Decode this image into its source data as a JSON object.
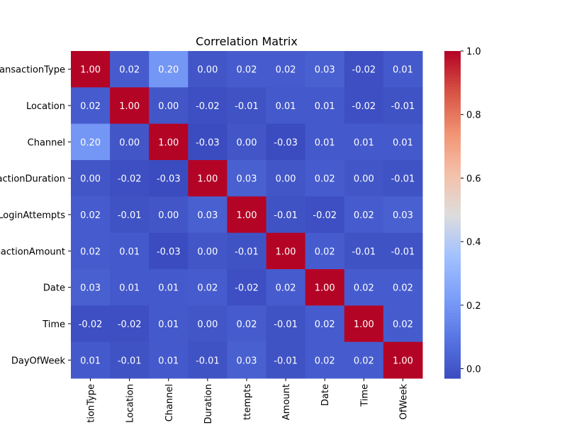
{
  "chart_data": {
    "type": "heatmap",
    "title": "Correlation Matrix",
    "labels": [
      "TransactionType",
      "Location",
      "Channel",
      "TransactionDuration",
      "LoginAttempts",
      "TransactionAmount",
      "Date",
      "Time",
      "DayOfWeek"
    ],
    "values": [
      [
        1.0,
        0.02,
        0.2,
        -0.0,
        0.02,
        0.02,
        0.03,
        -0.02,
        0.01
      ],
      [
        0.02,
        1.0,
        0.0,
        -0.02,
        -0.01,
        0.01,
        0.01,
        -0.02,
        -0.01
      ],
      [
        0.2,
        0.0,
        1.0,
        -0.03,
        -0.0,
        -0.03,
        0.01,
        0.01,
        0.01
      ],
      [
        -0.0,
        -0.02,
        -0.03,
        1.0,
        0.03,
        0.0,
        0.02,
        -0.0,
        -0.01
      ],
      [
        0.02,
        -0.01,
        -0.0,
        0.03,
        1.0,
        -0.01,
        -0.02,
        0.02,
        0.03
      ],
      [
        0.02,
        0.01,
        -0.03,
        0.0,
        -0.01,
        1.0,
        0.02,
        -0.01,
        -0.01
      ],
      [
        0.03,
        0.01,
        0.01,
        0.02,
        -0.02,
        0.02,
        1.0,
        0.02,
        0.02
      ],
      [
        -0.02,
        -0.02,
        0.01,
        -0.0,
        0.02,
        -0.01,
        0.02,
        1.0,
        0.02
      ],
      [
        0.01,
        -0.01,
        0.01,
        -0.01,
        0.03,
        -0.01,
        0.02,
        0.02,
        1.0
      ]
    ],
    "colormap": "coolwarm",
    "vmin": -0.03,
    "vmax": 1.0,
    "colorbar_ticks": [
      "0.0",
      "0.2",
      "0.4",
      "0.6",
      "0.8",
      "1.0"
    ],
    "annotated": true,
    "text_color": "#ffffff"
  }
}
